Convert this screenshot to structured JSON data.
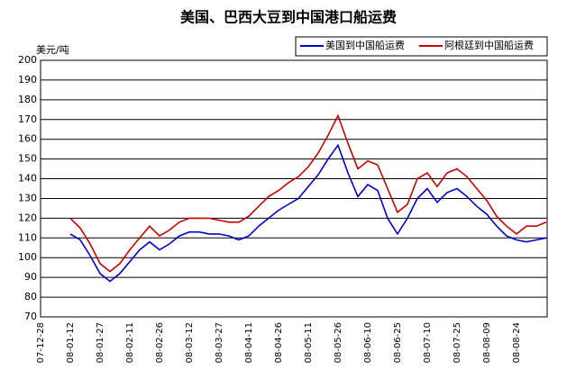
{
  "chart_data": {
    "type": "line",
    "title": "美国、巴西大豆到中国港口船运费",
    "y_label": "美元/吨",
    "categories": [
      "07-12-28",
      null,
      null,
      "08-01-12",
      null,
      null,
      "08-01-27",
      null,
      null,
      "08-02-11",
      null,
      null,
      "08-02-26",
      null,
      null,
      "08-03-12",
      null,
      null,
      "08-03-27",
      null,
      null,
      "08-04-11",
      null,
      null,
      "08-04-26",
      null,
      null,
      "08-05-11",
      null,
      null,
      "08-05-26",
      null,
      null,
      "08-06-10",
      null,
      null,
      "08-06-25",
      null,
      null,
      "08-07-10",
      null,
      null,
      "08-07-25",
      null,
      null,
      "08-08-09",
      null,
      null,
      "08-08-24",
      null,
      null,
      null
    ],
    "series": [
      {
        "name": "美国到中国船运费",
        "color": "#0000cc",
        "values": [
          null,
          null,
          null,
          112,
          109,
          101,
          92,
          88,
          92,
          98,
          104,
          108,
          104,
          107,
          111,
          113,
          113,
          112,
          112,
          111,
          109,
          111,
          116,
          120,
          124,
          127,
          130,
          136,
          142,
          150,
          157,
          143,
          131,
          137,
          134,
          120,
          112,
          120,
          130,
          135,
          128,
          133,
          135,
          131,
          126,
          122,
          116,
          111,
          109,
          108,
          109,
          110
        ]
      },
      {
        "name": "阿根廷到中国船运费",
        "color": "#cc0000",
        "values": [
          null,
          null,
          null,
          120,
          115,
          107,
          97,
          93,
          97,
          104,
          110,
          116,
          111,
          114,
          118,
          120,
          120,
          120,
          119,
          118,
          118,
          121,
          126,
          131,
          134,
          138,
          141,
          146,
          153,
          162,
          172,
          158,
          145,
          149,
          147,
          135,
          123,
          127,
          140,
          143,
          136,
          143,
          145,
          141,
          135,
          129,
          121,
          116,
          112,
          116,
          116,
          118
        ]
      }
    ],
    "ylim": [
      70,
      200
    ],
    "yticks": [
      70,
      80,
      90,
      100,
      110,
      120,
      130,
      140,
      150,
      160,
      170,
      180,
      190,
      200
    ],
    "grid": true,
    "legend": "top-right"
  }
}
